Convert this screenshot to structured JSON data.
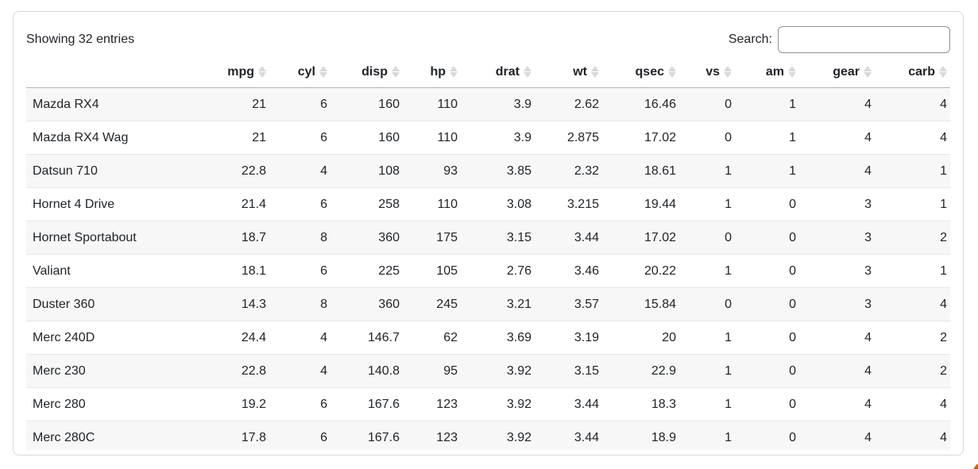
{
  "toolbar": {
    "info_text": "Showing 32 entries",
    "search_label": "Search:",
    "search_value": ""
  },
  "table": {
    "name_column_header": "",
    "columns": [
      "mpg",
      "cyl",
      "disp",
      "hp",
      "drat",
      "wt",
      "qsec",
      "vs",
      "am",
      "gear",
      "carb"
    ],
    "rows": [
      {
        "name": "Mazda RX4",
        "values": [
          "21",
          "6",
          "160",
          "110",
          "3.9",
          "2.62",
          "16.46",
          "0",
          "1",
          "4",
          "4"
        ]
      },
      {
        "name": "Mazda RX4 Wag",
        "values": [
          "21",
          "6",
          "160",
          "110",
          "3.9",
          "2.875",
          "17.02",
          "0",
          "1",
          "4",
          "4"
        ]
      },
      {
        "name": "Datsun 710",
        "values": [
          "22.8",
          "4",
          "108",
          "93",
          "3.85",
          "2.32",
          "18.61",
          "1",
          "1",
          "4",
          "1"
        ]
      },
      {
        "name": "Hornet 4 Drive",
        "values": [
          "21.4",
          "6",
          "258",
          "110",
          "3.08",
          "3.215",
          "19.44",
          "1",
          "0",
          "3",
          "1"
        ]
      },
      {
        "name": "Hornet Sportabout",
        "values": [
          "18.7",
          "8",
          "360",
          "175",
          "3.15",
          "3.44",
          "17.02",
          "0",
          "0",
          "3",
          "2"
        ]
      },
      {
        "name": "Valiant",
        "values": [
          "18.1",
          "6",
          "225",
          "105",
          "2.76",
          "3.46",
          "20.22",
          "1",
          "0",
          "3",
          "1"
        ]
      },
      {
        "name": "Duster 360",
        "values": [
          "14.3",
          "8",
          "360",
          "245",
          "3.21",
          "3.57",
          "15.84",
          "0",
          "0",
          "3",
          "4"
        ]
      },
      {
        "name": "Merc 240D",
        "values": [
          "24.4",
          "4",
          "146.7",
          "62",
          "3.69",
          "3.19",
          "20",
          "1",
          "0",
          "4",
          "2"
        ]
      },
      {
        "name": "Merc 230",
        "values": [
          "22.8",
          "4",
          "140.8",
          "95",
          "3.92",
          "3.15",
          "22.9",
          "1",
          "0",
          "4",
          "2"
        ]
      },
      {
        "name": "Merc 280",
        "values": [
          "19.2",
          "6",
          "167.6",
          "123",
          "3.92",
          "3.44",
          "18.3",
          "1",
          "0",
          "4",
          "4"
        ]
      },
      {
        "name": "Merc 280C",
        "values": [
          "17.8",
          "6",
          "167.6",
          "123",
          "3.92",
          "3.44",
          "18.9",
          "1",
          "0",
          "4",
          "4"
        ]
      }
    ]
  },
  "colors": {
    "text": "#212529",
    "sort_icon": "#d9d9d9",
    "row_stripe": "#f7f7f7",
    "row_border": "#e7e7e7",
    "header_border": "#b5b5b5",
    "card_border": "#d8d8d8",
    "input_border": "#949494",
    "cursor_artifact": "#c2631f"
  }
}
